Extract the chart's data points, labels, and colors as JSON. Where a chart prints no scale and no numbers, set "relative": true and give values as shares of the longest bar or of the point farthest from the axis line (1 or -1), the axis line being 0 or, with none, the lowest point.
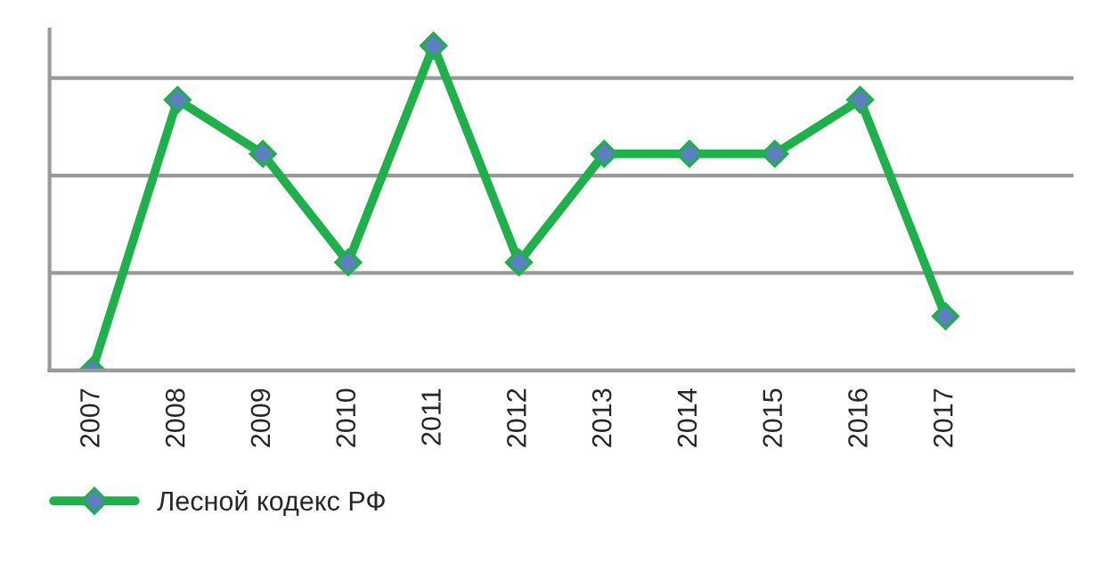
{
  "chart_data": {
    "type": "line",
    "relative": true,
    "categories": [
      "2007",
      "2008",
      "2009",
      "2010",
      "2011",
      "2012",
      "2013",
      "2014",
      "2015",
      "2016",
      "2017"
    ],
    "series": [
      {
        "name": "Лесной кодекс РФ",
        "color": "#1fb04b",
        "values": [
          0,
          0.833,
          0.667,
          0.333,
          1,
          0.333,
          0.667,
          0.667,
          0.667,
          0.833,
          0.167
        ]
      }
    ],
    "marker": "diamond",
    "grid": "y",
    "legend": "bottom left"
  }
}
